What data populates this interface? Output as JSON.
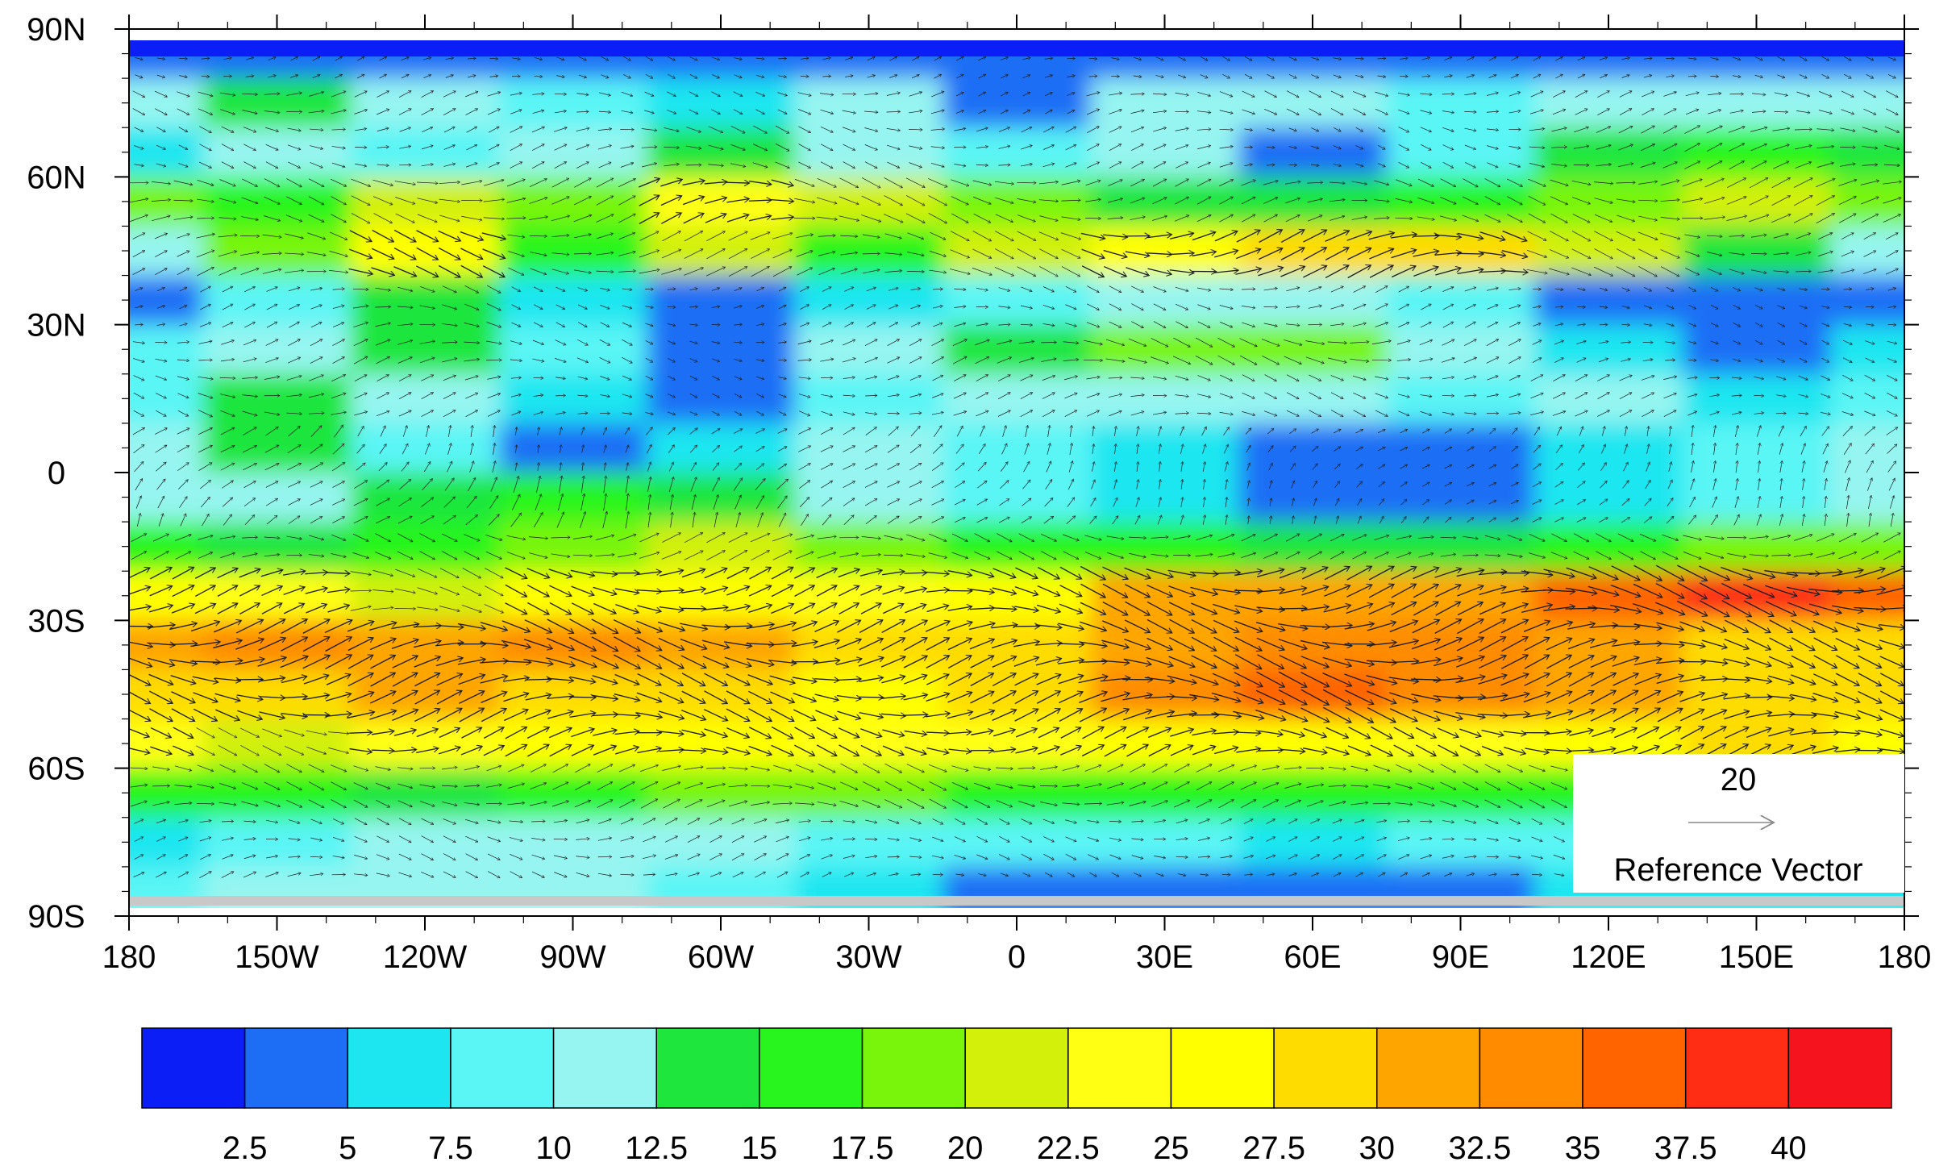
{
  "chart_data": {
    "type": "heatmap",
    "title": "",
    "xlabel": "",
    "ylabel": "",
    "x_ticks": [
      "180",
      "150W",
      "120W",
      "90W",
      "60W",
      "30W",
      "0",
      "30E",
      "60E",
      "90E",
      "120E",
      "150E",
      "180"
    ],
    "x_range": [
      -180,
      180
    ],
    "y_ticks": [
      "90N",
      "60N",
      "30N",
      "0",
      "30S",
      "60S",
      "90S"
    ],
    "y_range": [
      90,
      -90
    ],
    "colorbar": {
      "labels": [
        "2.5",
        "5",
        "7.5",
        "10",
        "12.5",
        "15",
        "17.5",
        "20",
        "22.5",
        "25",
        "27.5",
        "30",
        "32.5",
        "35",
        "37.5",
        "40"
      ],
      "colors": [
        "#0a1ef5",
        "#1e6ef5",
        "#1ee6f0",
        "#5af5f5",
        "#96f5f0",
        "#1ee63c",
        "#28f51e",
        "#78f50a",
        "#d2f00a",
        "#ffff14",
        "#ffff00",
        "#ffdc00",
        "#ffa500",
        "#ff8c00",
        "#ff6400",
        "#ff2d14",
        "#f5141e"
      ],
      "orientation": "horizontal"
    },
    "reference_vector": {
      "value": "20",
      "label": "Reference Vector"
    },
    "field_bands": [
      {
        "lat": 85,
        "values": [
          2.5,
          2.5,
          2.5,
          2.5,
          2.5,
          2.5,
          2.5,
          2.5,
          2.5,
          2.5,
          2.5,
          2.5,
          2.5
        ]
      },
      {
        "lat": 75,
        "values": [
          10,
          12.5,
          10,
          7.5,
          5,
          10,
          2.5,
          10,
          10,
          7.5,
          10,
          10,
          10
        ]
      },
      {
        "lat": 65,
        "values": [
          5,
          10,
          7.5,
          10,
          12.5,
          10,
          7.5,
          10,
          2.5,
          7.5,
          12.5,
          15,
          12.5
        ]
      },
      {
        "lat": 55,
        "values": [
          17.5,
          15,
          20,
          17.5,
          22.5,
          20,
          17.5,
          12.5,
          12.5,
          15,
          17.5,
          20,
          17.5
        ]
      },
      {
        "lat": 45,
        "values": [
          10,
          17.5,
          25,
          15,
          20,
          15,
          20,
          25,
          27.5,
          27.5,
          20,
          12.5,
          10
        ]
      },
      {
        "lat": 35,
        "values": [
          2.5,
          7.5,
          12.5,
          5,
          2.5,
          5,
          7.5,
          10,
          10,
          7.5,
          2.5,
          2.5,
          2.5
        ]
      },
      {
        "lat": 25,
        "values": [
          7.5,
          10,
          12.5,
          7.5,
          2.5,
          10,
          12.5,
          17.5,
          17.5,
          10,
          5,
          2.5,
          5
        ]
      },
      {
        "lat": 15,
        "values": [
          7.5,
          12.5,
          10,
          5,
          2.5,
          7.5,
          10,
          10,
          10,
          7.5,
          10,
          5,
          7.5
        ]
      },
      {
        "lat": 5,
        "values": [
          10,
          12.5,
          7.5,
          2.5,
          5,
          10,
          7.5,
          5,
          2.5,
          2.5,
          5,
          7.5,
          10
        ]
      },
      {
        "lat": -5,
        "values": [
          10,
          10,
          12.5,
          15,
          12.5,
          10,
          7.5,
          5,
          2.5,
          2.5,
          5,
          7.5,
          10
        ]
      },
      {
        "lat": -15,
        "values": [
          15,
          12.5,
          15,
          17.5,
          20,
          17.5,
          15,
          15,
          12.5,
          12.5,
          15,
          17.5,
          17.5
        ]
      },
      {
        "lat": -25,
        "values": [
          25,
          22.5,
          20,
          25,
          25,
          22.5,
          25,
          30,
          30,
          30,
          35,
          37.5,
          35
        ]
      },
      {
        "lat": -35,
        "values": [
          30,
          32.5,
          30,
          32.5,
          30,
          27.5,
          27.5,
          30,
          32.5,
          32.5,
          30,
          27.5,
          27.5
        ]
      },
      {
        "lat": -45,
        "values": [
          27.5,
          27.5,
          30,
          27.5,
          27.5,
          25,
          27.5,
          32.5,
          35,
          32.5,
          30,
          27.5,
          27.5
        ]
      },
      {
        "lat": -55,
        "values": [
          22.5,
          20,
          22.5,
          25,
          25,
          22.5,
          22.5,
          25,
          25,
          22.5,
          25,
          27.5,
          25
        ]
      },
      {
        "lat": -65,
        "values": [
          15,
          15,
          12.5,
          15,
          17.5,
          17.5,
          15,
          15,
          15,
          15,
          15,
          15,
          15
        ]
      },
      {
        "lat": -75,
        "values": [
          5,
          7.5,
          10,
          10,
          10,
          7.5,
          7.5,
          7.5,
          5,
          7.5,
          7.5,
          7.5,
          5
        ]
      },
      {
        "lat": -85,
        "values": [
          7.5,
          10,
          10,
          10,
          7.5,
          5,
          2.5,
          2.5,
          2.5,
          2.5,
          5,
          5,
          5
        ]
      }
    ]
  }
}
